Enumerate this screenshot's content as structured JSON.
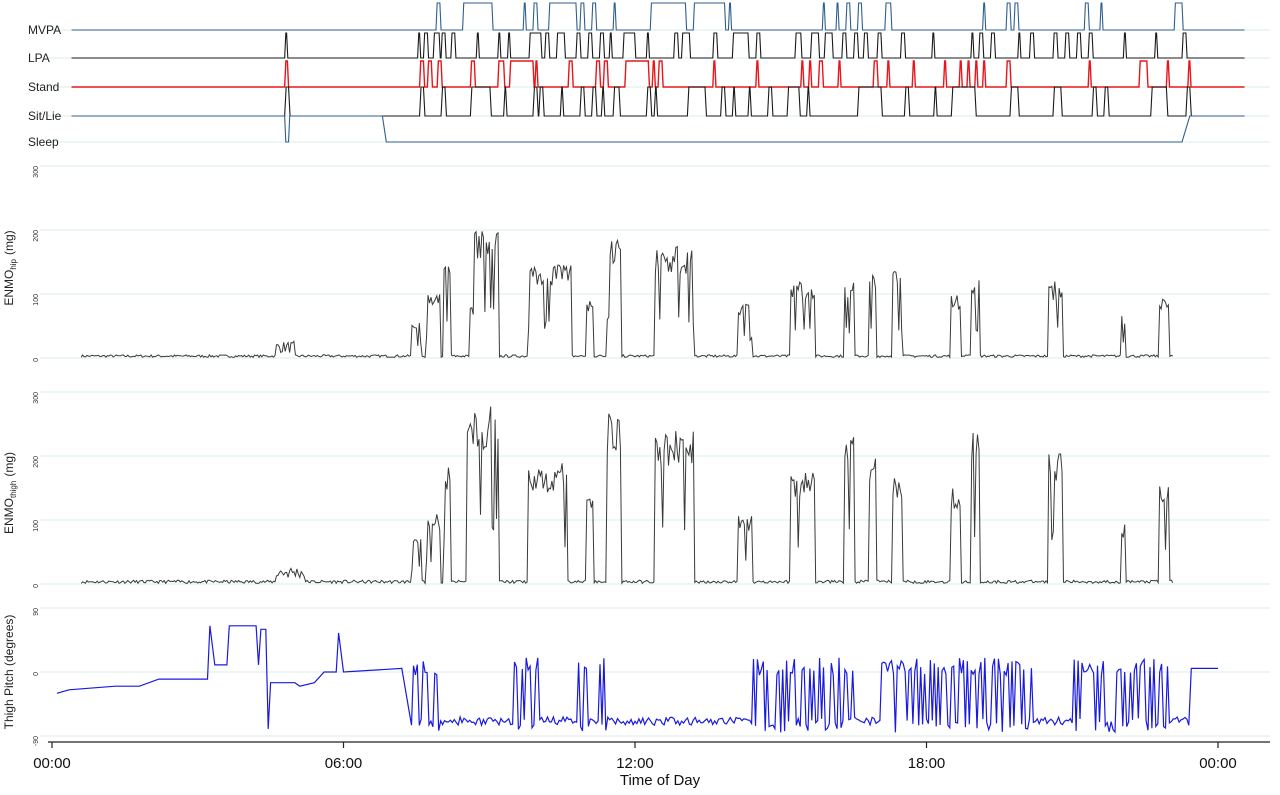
{
  "chart_data": [
    {
      "type": "line",
      "panel": "activity-states",
      "states": [
        {
          "name": "MVPA",
          "color": "#2f5e8f",
          "active": [
            [
              9.82,
              9.92
            ],
            [
              10.5,
              11.25
            ],
            [
              12.05,
              12.1
            ],
            [
              12.3,
              12.4
            ],
            [
              12.7,
              13.4
            ],
            [
              13.5,
              13.6
            ],
            [
              13.8,
              13.9
            ],
            [
              14.35,
              14.4
            ],
            [
              15.3,
              16.2
            ],
            [
              16.4,
              17.2
            ],
            [
              17.3,
              17.35
            ],
            [
              19.7,
              19.75
            ],
            [
              20.05,
              20.1
            ],
            [
              20.3,
              20.4
            ],
            [
              20.6,
              20.7
            ],
            [
              21.3,
              21.45
            ],
            [
              23.8,
              23.85
            ],
            [
              24.4,
              24.5
            ],
            [
              24.6,
              24.7
            ],
            [
              26.4,
              26.5
            ],
            [
              26.8,
              26.85
            ],
            [
              28.7,
              28.9
            ]
          ],
          "baseline": "low"
        },
        {
          "name": "LPA",
          "color": "#1a1a1a",
          "active": [
            [
              5.95,
              6.0
            ],
            [
              9.35,
              9.4
            ],
            [
              9.5,
              9.6
            ],
            [
              9.75,
              9.9
            ],
            [
              9.95,
              10.05
            ],
            [
              10.2,
              10.3
            ],
            [
              10.85,
              10.9
            ],
            [
              11.4,
              11.45
            ],
            [
              11.65,
              11.7
            ],
            [
              12.2,
              12.5
            ],
            [
              12.6,
              12.7
            ],
            [
              12.9,
              13.1
            ],
            [
              13.4,
              13.5
            ],
            [
              13.7,
              13.8
            ],
            [
              14.0,
              14.1
            ],
            [
              14.25,
              14.3
            ],
            [
              14.6,
              14.9
            ],
            [
              15.2,
              15.25
            ],
            [
              15.9,
              16.0
            ],
            [
              16.1,
              16.3
            ],
            [
              16.9,
              17.0
            ],
            [
              17.4,
              17.8
            ],
            [
              18.0,
              18.1
            ],
            [
              19.0,
              19.15
            ],
            [
              19.4,
              19.6
            ],
            [
              19.75,
              19.95
            ],
            [
              20.2,
              20.3
            ],
            [
              20.5,
              20.6
            ],
            [
              20.75,
              20.85
            ],
            [
              21.1,
              21.2
            ],
            [
              21.7,
              21.8
            ],
            [
              22.5,
              22.55
            ],
            [
              23.5,
              23.55
            ],
            [
              23.7,
              23.8
            ],
            [
              24.0,
              24.1
            ],
            [
              24.7,
              24.75
            ],
            [
              25.0,
              25.1
            ],
            [
              25.6,
              25.7
            ],
            [
              25.9,
              26.0
            ],
            [
              26.2,
              26.3
            ],
            [
              26.5,
              26.6
            ],
            [
              27.4,
              27.45
            ],
            [
              28.2,
              28.25
            ],
            [
              28.9,
              29.0
            ]
          ],
          "baseline": "low"
        },
        {
          "name": "Stand",
          "color": "#e8161a",
          "active": [
            [
              5.95,
              6.02
            ],
            [
              9.4,
              9.5
            ],
            [
              9.6,
              9.7
            ],
            [
              9.85,
              9.95
            ],
            [
              10.7,
              10.8
            ],
            [
              11.4,
              11.55
            ],
            [
              11.7,
              12.3
            ],
            [
              12.35,
              12.4
            ],
            [
              13.2,
              13.3
            ],
            [
              13.9,
              14.0
            ],
            [
              14.1,
              14.2
            ],
            [
              14.65,
              15.25
            ],
            [
              15.35,
              15.4
            ],
            [
              15.5,
              15.6
            ],
            [
              16.9,
              16.95
            ],
            [
              18.0,
              18.05
            ],
            [
              19.15,
              19.2
            ],
            [
              19.35,
              19.4
            ],
            [
              19.6,
              19.7
            ],
            [
              20.1,
              20.15
            ],
            [
              21.0,
              21.1
            ],
            [
              21.35,
              21.4
            ],
            [
              22.0,
              22.05
            ],
            [
              22.8,
              22.85
            ],
            [
              23.2,
              23.25
            ],
            [
              23.4,
              23.45
            ],
            [
              23.6,
              23.65
            ],
            [
              23.8,
              23.85
            ],
            [
              24.4,
              24.5
            ],
            [
              26.5,
              26.55
            ],
            [
              27.8,
              28.0
            ],
            [
              28.5,
              28.55
            ],
            [
              29.05,
              29.1
            ]
          ],
          "baseline": "low"
        },
        {
          "name": "Sit/Lie",
          "color": "#1a1a1a",
          "active": [
            [
              0.5,
              5.9
            ],
            [
              6.1,
              8.2
            ],
            [
              8.3,
              8.5
            ],
            [
              9.4,
              9.5
            ],
            [
              9.7,
              10.45
            ],
            [
              11.2,
              11.35
            ],
            [
              11.55,
              11.65
            ],
            [
              12.4,
              13.5
            ],
            [
              13.65,
              13.8
            ],
            [
              14.15,
              14.3
            ],
            [
              14.55,
              14.65
            ],
            [
              15.0,
              15.1
            ],
            [
              15.25,
              15.4
            ],
            [
              15.45,
              15.55
            ],
            [
              16.15,
              16.6
            ],
            [
              16.75,
              16.85
            ],
            [
              17.1,
              17.2
            ],
            [
              18.3,
              18.8
            ],
            [
              19.1,
              19.45
            ],
            [
              19.7,
              19.85
            ],
            [
              20.15,
              20.65
            ],
            [
              21.3,
              21.9
            ],
            [
              22.1,
              22.5
            ],
            [
              23.5,
              24.5
            ],
            [
              24.7,
              24.8
            ],
            [
              25.0,
              25.6
            ],
            [
              25.8,
              25.9
            ],
            [
              26.3,
              26.7
            ],
            [
              27.0,
              28.1
            ],
            [
              28.4,
              29.1
            ],
            [
              29.3,
              30.5
            ]
          ],
          "baseline": "low",
          "invert_baseline": true
        },
        {
          "name": "Sleep",
          "color": "#2f5e8f",
          "active": [
            [
              8.5,
              23.5
            ]
          ],
          "baseline": "high",
          "dip": [
            [
              5.95,
              6.05
            ]
          ]
        }
      ]
    },
    {
      "type": "line",
      "panel": "enmo-hip",
      "ylabel_main": "ENMO",
      "ylabel_sub": "hip",
      "ylabel_unit": "(mg)",
      "ylim": [
        0,
        300
      ],
      "yticks": [
        0,
        100,
        200,
        300
      ],
      "color": "#3a3a3a"
    },
    {
      "type": "line",
      "panel": "enmo-thigh",
      "ylabel_main": "ENMO",
      "ylabel_sub": "thigh",
      "ylabel_unit": "(mg)",
      "ylim": [
        0,
        300
      ],
      "yticks": [
        0,
        100,
        200,
        300
      ],
      "color": "#3a3a3a"
    },
    {
      "type": "line",
      "panel": "thigh-pitch",
      "ylabel": "Thigh Pitch (degrees)",
      "ylim": [
        -90,
        90
      ],
      "yticks": [
        -90,
        0,
        90
      ],
      "color": "#1a1adf"
    }
  ],
  "xaxis": {
    "title": "Time of Day",
    "ticks": [
      "00:00",
      "06:00",
      "12:00",
      "18:00",
      "00:00"
    ],
    "range_hours": [
      0,
      24
    ]
  }
}
